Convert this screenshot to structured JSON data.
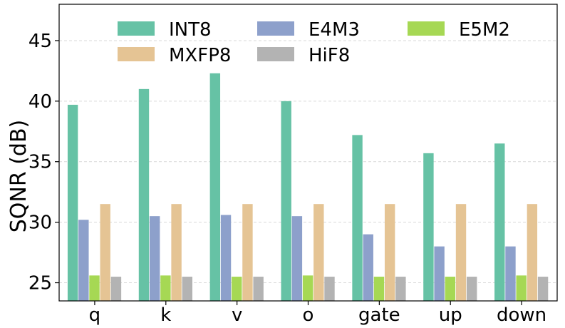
{
  "chart_data": {
    "type": "bar",
    "title": "",
    "xlabel": "",
    "ylabel": "SQNR (dB)",
    "ylim": [
      23.5,
      48
    ],
    "yticks": [
      25,
      30,
      35,
      40,
      45
    ],
    "grid": "horizontal-dashed",
    "legend_position": "top, 3 columns",
    "categories": [
      "q",
      "k",
      "v",
      "o",
      "gate",
      "up",
      "down"
    ],
    "series": [
      {
        "name": "INT8",
        "color": "#66c2a5",
        "values": [
          39.7,
          41.0,
          42.3,
          40.0,
          37.2,
          35.7,
          36.5
        ]
      },
      {
        "name": "E4M3",
        "color": "#8da0cb",
        "values": [
          30.2,
          30.5,
          30.6,
          30.5,
          29.0,
          28.0,
          28.0
        ]
      },
      {
        "name": "E5M2",
        "color": "#a6d854",
        "values": [
          25.6,
          25.6,
          25.5,
          25.6,
          25.5,
          25.5,
          25.6
        ]
      },
      {
        "name": "MXFP8",
        "color": "#e5c494",
        "values": [
          31.5,
          31.5,
          31.5,
          31.5,
          31.5,
          31.5,
          31.5
        ]
      },
      {
        "name": "HiF8",
        "color": "#b3b3b3",
        "values": [
          25.5,
          25.5,
          25.5,
          25.5,
          25.5,
          25.5,
          25.5
        ]
      }
    ]
  }
}
